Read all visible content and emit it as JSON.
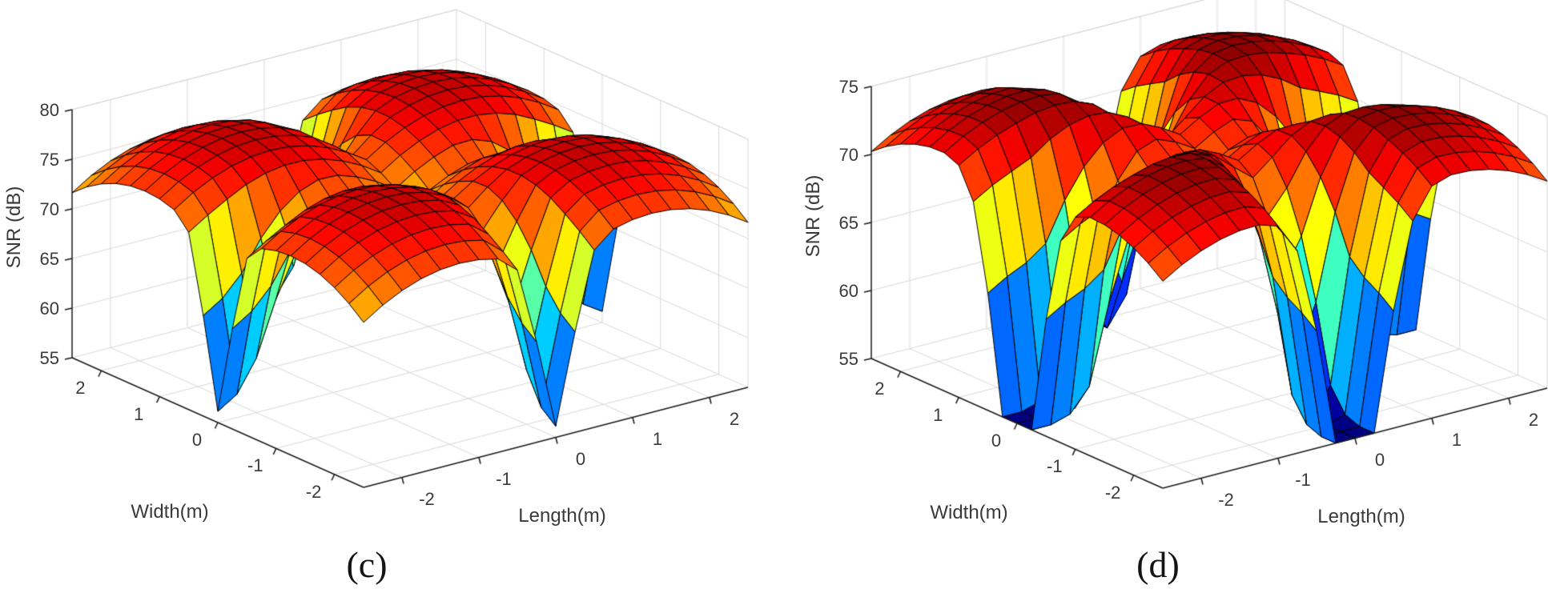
{
  "figure": {
    "background": "#ffffff",
    "grid_color": "#d7d7d7",
    "axis_color": "#1a1a1a",
    "tick_text_color": "#3a3a3a",
    "caption_color": "#141414",
    "surface_edge_color": "#000000"
  },
  "chart_data": [
    {
      "id": "c",
      "type": "surface",
      "title": "",
      "caption": "(c)",
      "xlabel": "Length(m)",
      "ylabel": "Width(m)",
      "zlabel": "SNR (dB)",
      "xlim": [
        -2.5,
        2.5
      ],
      "ylim": [
        -2.5,
        2.5
      ],
      "zlim": [
        55,
        80
      ],
      "xticks": [
        -2,
        -1,
        0,
        1,
        2
      ],
      "yticks": [
        2,
        1,
        0,
        -1,
        -2
      ],
      "zticks": [
        55,
        60,
        65,
        70,
        75,
        80
      ],
      "colormap": "jet",
      "grid": true,
      "surface_model": {
        "description": "SNR (dB) over a 5m x 5m area: four red dome-shaped coverage peaks centred on the quadrant centres, with narrow deep fade crevices along the x=0 and y=0 lines that deepen toward the area edges, dropping to the 55 dB floor (blue pits)",
        "grid_points": 21,
        "peak_positions": [
          [
            1.25,
            1.25
          ],
          [
            -1.25,
            1.25
          ],
          [
            1.25,
            -1.25
          ],
          [
            -1.25,
            -1.25
          ]
        ],
        "peak_snr_db": 78.5,
        "falloff_db_per_m2": 2.2,
        "notch_axes": [
          "x=0",
          "y=0"
        ],
        "notch_depth_db": 15.5,
        "notch_width_m": 0.3,
        "notch_ramp_start_m": 0.7,
        "notch_ramp_length_m": 1.4,
        "floor_snr_db": 55
      }
    },
    {
      "id": "d",
      "type": "surface",
      "title": "",
      "caption": "(d)",
      "xlabel": "Length(m)",
      "ylabel": "Width(m)",
      "zlabel": "SNR (dB)",
      "xlim": [
        -2.5,
        2.5
      ],
      "ylim": [
        -2.5,
        2.5
      ],
      "zlim": [
        55,
        75
      ],
      "xticks": [
        -2,
        -1,
        0,
        1,
        2
      ],
      "yticks": [
        2,
        1,
        0,
        -1,
        -2
      ],
      "zticks": [
        55,
        60,
        65,
        70,
        75
      ],
      "colormap": "jet",
      "grid": true,
      "surface_model": {
        "description": "Same four-dome SNR field but with wider, deeper fade valleys along x=0 and y=0 showing cyan/green/yellow walls and broad blue pits that reach the 55 dB floor",
        "grid_points": 21,
        "peak_positions": [
          [
            1.25,
            1.25
          ],
          [
            -1.25,
            1.25
          ],
          [
            1.25,
            -1.25
          ],
          [
            -1.25,
            -1.25
          ]
        ],
        "peak_snr_db": 74.9,
        "falloff_db_per_m2": 1.5,
        "notch_axes": [
          "x=0",
          "y=0"
        ],
        "notch_depth_db": 22,
        "notch_width_m": 0.5,
        "notch_ramp_start_m": 0.4,
        "notch_ramp_length_m": 1.4,
        "floor_snr_db": 55
      }
    }
  ]
}
